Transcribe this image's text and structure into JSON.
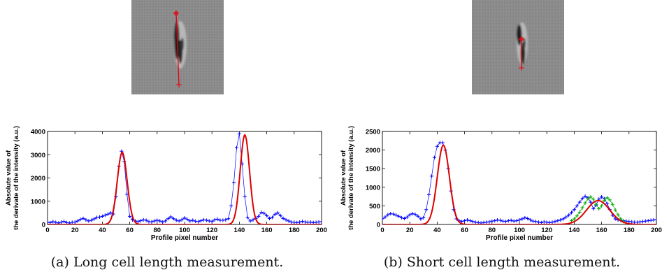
{
  "panels": [
    {
      "caption_label": "(a)",
      "caption": "Long cell length measurement.",
      "image": {
        "icon": "cell-microscopy-image",
        "background": "#8c8c8c",
        "marker_color": "#e8000b",
        "profile_line": "vertical red line with end markers"
      }
    },
    {
      "caption_label": "(b)",
      "caption": "Short cell length measurement.",
      "image": {
        "icon": "cell-microscopy-image",
        "background": "#8c8c8c",
        "marker_color": "#e8000b",
        "profile_line": "short vertical red line with end markers"
      }
    }
  ],
  "chart_data": [
    {
      "type": "line",
      "title": "",
      "xlabel": "Profile pixel number",
      "ylabel": [
        "Absolute value of",
        "the derivate of the intensity (a.u.)"
      ],
      "xlim": [
        0,
        200
      ],
      "ylim": [
        0,
        4000
      ],
      "xticks": [
        0,
        20,
        40,
        60,
        80,
        100,
        120,
        140,
        160,
        180,
        200
      ],
      "yticks": [
        0,
        1000,
        2000,
        3000,
        4000
      ],
      "grid": false,
      "legend": "none",
      "series": [
        {
          "style": "markers",
          "marker": "+",
          "color": "#0000ff",
          "x": [
            0,
            2,
            4,
            6,
            8,
            10,
            12,
            14,
            16,
            18,
            20,
            22,
            24,
            26,
            28,
            30,
            32,
            34,
            36,
            38,
            40,
            42,
            44,
            46,
            48,
            50,
            52,
            54,
            56,
            58,
            60,
            62,
            64,
            66,
            68,
            70,
            72,
            74,
            76,
            78,
            80,
            82,
            84,
            86,
            88,
            90,
            92,
            94,
            96,
            98,
            100,
            102,
            104,
            106,
            108,
            110,
            112,
            114,
            116,
            118,
            120,
            122,
            124,
            126,
            128,
            130,
            132,
            134,
            136,
            138,
            140,
            142,
            144,
            146,
            148,
            150,
            152,
            154,
            156,
            158,
            160,
            162,
            164,
            166,
            168,
            170,
            172,
            174,
            176,
            178,
            180,
            182,
            184,
            186,
            188,
            190,
            192,
            194,
            196,
            198,
            200
          ],
          "y": [
            100,
            80,
            120,
            90,
            60,
            100,
            130,
            80,
            60,
            90,
            100,
            150,
            220,
            260,
            200,
            150,
            180,
            240,
            300,
            320,
            350,
            400,
            440,
            500,
            450,
            1200,
            2500,
            3150,
            2700,
            1300,
            350,
            200,
            150,
            120,
            160,
            200,
            180,
            120,
            110,
            150,
            180,
            150,
            100,
            150,
            250,
            330,
            250,
            180,
            150,
            200,
            280,
            220,
            150,
            180,
            140,
            120,
            160,
            200,
            180,
            150,
            130,
            200,
            230,
            180,
            180,
            200,
            250,
            800,
            1800,
            3300,
            3900,
            2600,
            1200,
            300,
            150,
            200,
            260,
            350,
            520,
            480,
            380,
            260,
            300,
            440,
            500,
            380,
            260,
            200,
            150,
            100,
            90,
            80,
            100,
            130,
            110,
            90,
            100,
            80,
            90,
            110,
            120
          ]
        },
        {
          "style": "line",
          "color": "#dd0000",
          "name": "",
          "gaussians": [
            {
              "amplitude": 3100,
              "center": 54.5,
              "sigma": 3.6
            },
            {
              "amplitude": 3850,
              "center": 144,
              "sigma": 3.4
            }
          ]
        }
      ]
    },
    {
      "type": "line",
      "title": "",
      "xlabel": "Profile pixel number",
      "ylabel": [
        "Absolute value of",
        "the derivate of the intensity (a.u.)"
      ],
      "xlim": [
        0,
        200
      ],
      "ylim": [
        0,
        2500
      ],
      "xticks": [
        0,
        20,
        40,
        60,
        80,
        100,
        120,
        140,
        160,
        180,
        200
      ],
      "yticks": [
        0,
        500,
        1000,
        1500,
        2000,
        2500
      ],
      "grid": false,
      "legend": "none",
      "series": [
        {
          "style": "markers",
          "marker": "+",
          "color": "#0000ff",
          "x": [
            0,
            2,
            4,
            6,
            8,
            10,
            12,
            14,
            16,
            18,
            20,
            22,
            24,
            26,
            28,
            30,
            32,
            34,
            36,
            38,
            40,
            42,
            44,
            46,
            48,
            50,
            52,
            54,
            56,
            58,
            60,
            62,
            64,
            66,
            68,
            70,
            72,
            74,
            76,
            78,
            80,
            82,
            84,
            86,
            88,
            90,
            92,
            94,
            96,
            98,
            100,
            102,
            104,
            106,
            108,
            110,
            112,
            114,
            116,
            118,
            120,
            122,
            124,
            126,
            128,
            130,
            132,
            134,
            136,
            138,
            140,
            142,
            144,
            146,
            148,
            150,
            152,
            154,
            156,
            158,
            160,
            162,
            164,
            166,
            168,
            170,
            172,
            174,
            176,
            178,
            180,
            182,
            184,
            186,
            188,
            190,
            192,
            194,
            196,
            198,
            200
          ],
          "y": [
            150,
            200,
            260,
            290,
            280,
            250,
            220,
            180,
            160,
            200,
            260,
            290,
            270,
            220,
            150,
            180,
            400,
            800,
            1300,
            1800,
            2100,
            2200,
            2200,
            2000,
            1500,
            900,
            400,
            150,
            100,
            80,
            100,
            120,
            100,
            80,
            60,
            50,
            40,
            50,
            60,
            70,
            90,
            100,
            120,
            110,
            90,
            80,
            100,
            110,
            90,
            100,
            120,
            150,
            180,
            160,
            120,
            90,
            80,
            60,
            50,
            70,
            60,
            50,
            60,
            80,
            100,
            120,
            150,
            200,
            250,
            320,
            400,
            500,
            600,
            700,
            760,
            720,
            600,
            420,
            520,
            680,
            740,
            690,
            560,
            400,
            250,
            150,
            120,
            110,
            100,
            90,
            80,
            70,
            60,
            60,
            70,
            80,
            90,
            100,
            110,
            120,
            130
          ]
        },
        {
          "style": "markers",
          "marker": "+",
          "color": "#00aa00",
          "x": [
            138,
            140,
            142,
            144,
            146,
            148,
            150,
            152,
            154,
            156,
            158,
            160,
            162,
            164,
            166,
            168,
            170,
            172,
            174,
            176
          ],
          "y": [
            100,
            150,
            230,
            330,
            450,
            580,
            690,
            740,
            680,
            540,
            420,
            500,
            650,
            720,
            660,
            540,
            390,
            260,
            150,
            80
          ]
        },
        {
          "style": "line",
          "color": "#dd0000",
          "name": "",
          "gaussians": [
            {
              "amplitude": 2130,
              "center": 44.5,
              "sigma": 4.4
            },
            {
              "amplitude": 640,
              "center": 157.5,
              "sigma": 8.5
            }
          ]
        }
      ]
    }
  ]
}
